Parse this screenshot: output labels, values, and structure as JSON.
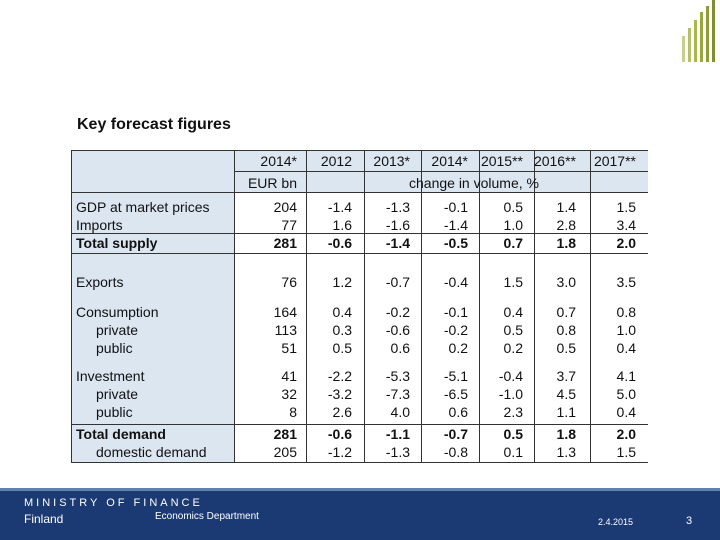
{
  "header": {
    "title": "Key forecast figures"
  },
  "table": {
    "col_headers": [
      "2014*",
      "2012",
      "2013*",
      "2014*",
      "2015**",
      "2016**",
      "2017**"
    ],
    "unit_eur": "EUR bn",
    "unit_change": "change in volume, %",
    "rows": [
      {
        "label": "GDP at market prices",
        "values": [
          "204",
          "-1.4",
          "-1.3",
          "-0.1",
          "0.5",
          "1.4",
          "1.5"
        ]
      },
      {
        "label": "Imports",
        "values": [
          "77",
          "1.6",
          "-1.6",
          "-1.4",
          "1.0",
          "2.8",
          "3.4"
        ]
      },
      {
        "label": "Total supply",
        "values": [
          "281",
          "-0.6",
          "-1.4",
          "-0.5",
          "0.7",
          "1.8",
          "2.0"
        ]
      },
      {
        "label": "Exports",
        "values": [
          "76",
          "1.2",
          "-0.7",
          "-0.4",
          "1.5",
          "3.0",
          "3.5"
        ]
      },
      {
        "label": "Consumption",
        "values": [
          "164",
          "0.4",
          "-0.2",
          "-0.1",
          "0.4",
          "0.7",
          "0.8"
        ]
      },
      {
        "label": "private",
        "values": [
          "113",
          "0.3",
          "-0.6",
          "-0.2",
          "0.5",
          "0.8",
          "1.0"
        ]
      },
      {
        "label": "public",
        "values": [
          "51",
          "0.5",
          "0.6",
          "0.2",
          "0.2",
          "0.5",
          "0.4"
        ]
      },
      {
        "label": "Investment",
        "values": [
          "41",
          "-2.2",
          "-5.3",
          "-5.1",
          "-0.4",
          "3.7",
          "4.1"
        ]
      },
      {
        "label": "private",
        "values": [
          "32",
          "-3.2",
          "-7.3",
          "-6.5",
          "-1.0",
          "4.5",
          "5.0"
        ]
      },
      {
        "label": "public",
        "values": [
          "8",
          "2.6",
          "4.0",
          "0.6",
          "2.3",
          "1.1",
          "0.4"
        ]
      },
      {
        "label": "Total demand",
        "values": [
          "281",
          "-0.6",
          "-1.1",
          "-0.7",
          "0.5",
          "1.8",
          "2.0"
        ]
      },
      {
        "label": "domestic demand",
        "values": [
          "205",
          "-1.2",
          "-1.3",
          "-0.8",
          "0.1",
          "1.3",
          "1.5"
        ]
      }
    ]
  },
  "footer": {
    "ministry": "MINISTRY OF FINANCE",
    "country": "Finland",
    "department": "Economics Department",
    "date": "2.4.2015",
    "page": "3"
  },
  "colors": {
    "header_bg": "#dce6f1",
    "footer_bg": "#1b3a73",
    "logo_green": "#a8b84a"
  }
}
